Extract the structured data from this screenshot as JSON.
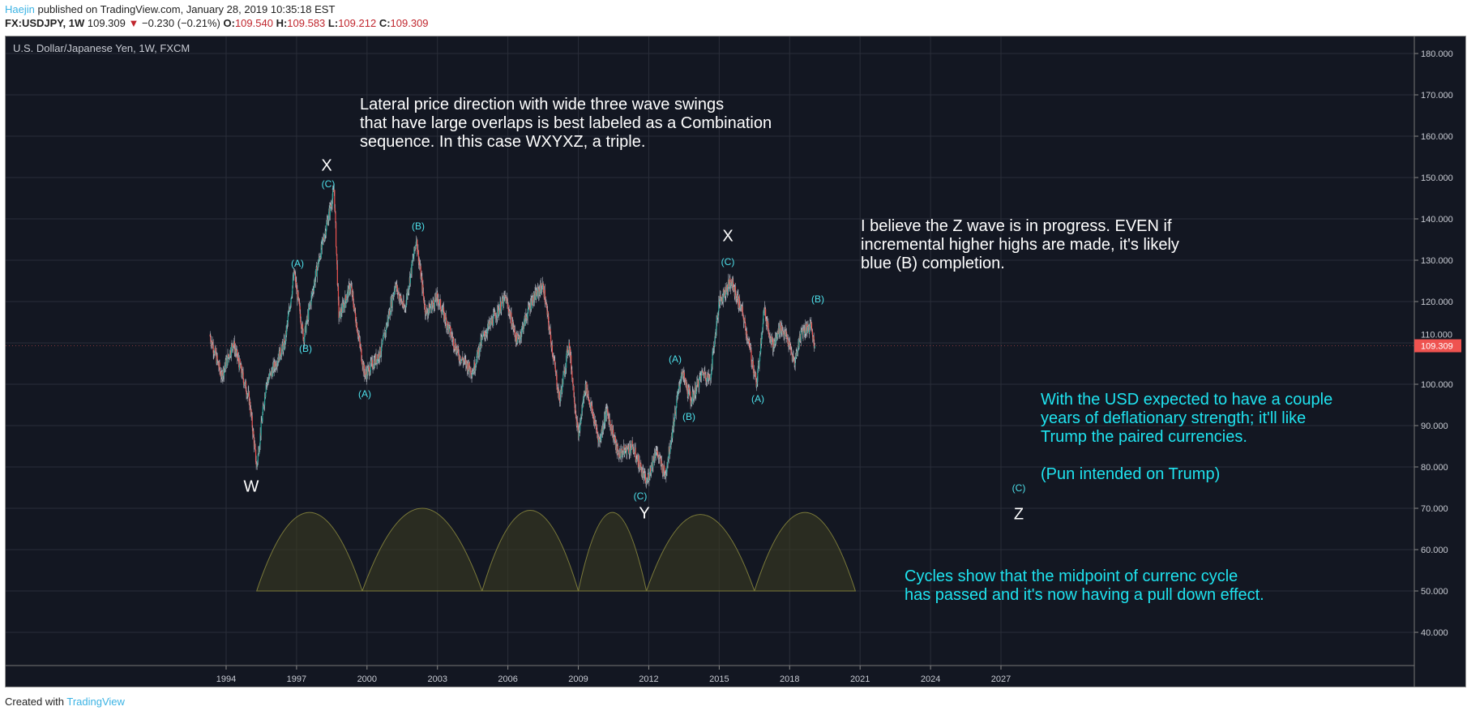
{
  "header": {
    "author": "Haejin",
    "published": "published on TradingView.com, January 28, 2019 10:35:18 EST",
    "symbol": "FX:USDJPY, 1W",
    "last": "109.309",
    "change": "−0.230 (−0.21%)",
    "o_label": "O:",
    "o": "109.540",
    "h_label": "H:",
    "h": "109.583",
    "l_label": "L:",
    "l": "109.212",
    "c_label": "C:",
    "c": "109.309"
  },
  "panel_title": "U.S. Dollar/Japanese Yen, 1W, FXCM",
  "annotations": {
    "lateral": "Lateral price direction with wide three wave swings\nthat have large overlaps is best labeled as a Combination\nsequence. In this case WXYXZ, a triple.",
    "believe": "I believe the Z wave is in progress. EVEN if\nincremental higher highs are made, it's likely\nblue (B) completion.",
    "usd": "With the USD expected to have a couple\nyears of deflationary strength; it'll like\nTrump the paired currencies.\n\n(Pun intended on Trump)",
    "cycles": "Cycles show that the midpoint of currenc cycle\nhas passed and it's now having a pull down effect."
  },
  "wave_labels": {
    "W": "W",
    "X1": "X",
    "X2": "X",
    "Y": "Y",
    "Z": "Z",
    "C1": "(C)",
    "A1": "(A)",
    "B1": "(B)",
    "B2": "(B)",
    "A2": "(A)",
    "C2": "(C)",
    "A3": "(A)",
    "B3": "(B)",
    "C3": "(C)",
    "A4": "(A)",
    "B4": "(B)",
    "C4": "(C)"
  },
  "footer": {
    "created": "Created with",
    "brand": "TradingView"
  },
  "chart_data": {
    "type": "candlestick",
    "title": "U.S. Dollar/Japanese Yen, 1W, FXCM",
    "x_ticks": [
      "1994",
      "1997",
      "2000",
      "2003",
      "2006",
      "2009",
      "2012",
      "2015",
      "2018",
      "2021",
      "2024",
      "2027"
    ],
    "y_ticks": [
      "180.000",
      "170.000",
      "160.000",
      "150.000",
      "140.000",
      "130.000",
      "120.000",
      "110.000",
      "100.000",
      "90.000",
      "80.000",
      "70.000",
      "60.000",
      "50.000",
      "40.000"
    ],
    "ylim": [
      33,
      183
    ],
    "xlim": [
      1981.2,
      2031.2
    ],
    "last_price_label": "109.309",
    "grid": true,
    "colors": {
      "up": "#26a69a",
      "down": "#ef5350",
      "wick": "#b2b5be",
      "last_price_bg": "#ef5350",
      "cycle_fill": "#3a3a22",
      "cycle_stroke": "#7b7a3a"
    },
    "price_pivots": [
      [
        1993.3,
        112
      ],
      [
        1993.8,
        102
      ],
      [
        1994.3,
        110
      ],
      [
        1995.0,
        96
      ],
      [
        1995.3,
        80
      ],
      [
        1995.7,
        100
      ],
      [
        1996.5,
        110
      ],
      [
        1996.9,
        127
      ],
      [
        1997.3,
        111
      ],
      [
        1997.8,
        126
      ],
      [
        1998.6,
        147
      ],
      [
        1998.8,
        116
      ],
      [
        1999.3,
        124
      ],
      [
        1999.9,
        102
      ],
      [
        2000.6,
        108
      ],
      [
        2001.2,
        124
      ],
      [
        2001.6,
        118
      ],
      [
        2002.1,
        135
      ],
      [
        2002.5,
        117
      ],
      [
        2003.0,
        121
      ],
      [
        2003.9,
        107
      ],
      [
        2004.5,
        103
      ],
      [
        2004.9,
        111
      ],
      [
        2005.9,
        121
      ],
      [
        2006.4,
        110
      ],
      [
        2007.0,
        120
      ],
      [
        2007.5,
        124
      ],
      [
        2008.2,
        96
      ],
      [
        2008.6,
        110
      ],
      [
        2009.0,
        87
      ],
      [
        2009.3,
        100
      ],
      [
        2009.9,
        86
      ],
      [
        2010.2,
        94
      ],
      [
        2010.7,
        83
      ],
      [
        2011.3,
        85
      ],
      [
        2011.9,
        76
      ],
      [
        2012.3,
        84
      ],
      [
        2012.7,
        78
      ],
      [
        2013.4,
        103
      ],
      [
        2013.8,
        96
      ],
      [
        2014.3,
        103
      ],
      [
        2014.6,
        101
      ],
      [
        2015.0,
        120
      ],
      [
        2015.5,
        125
      ],
      [
        2016.0,
        117
      ],
      [
        2016.6,
        100
      ],
      [
        2016.9,
        118
      ],
      [
        2017.3,
        109
      ],
      [
        2017.6,
        114
      ],
      [
        2017.9,
        111
      ],
      [
        2018.2,
        105
      ],
      [
        2018.5,
        113
      ],
      [
        2018.9,
        114
      ],
      [
        2019.07,
        109.309
      ]
    ],
    "cycles": [
      {
        "start": 1995.3,
        "end": 1999.8,
        "peak": 69
      },
      {
        "start": 1999.8,
        "end": 2004.9,
        "peak": 70
      },
      {
        "start": 2004.9,
        "end": 2009.0,
        "peak": 69.5
      },
      {
        "start": 2009.0,
        "end": 2011.9,
        "peak": 69
      },
      {
        "start": 2011.9,
        "end": 2016.5,
        "peak": 68.5
      },
      {
        "start": 2016.5,
        "end": 2020.8,
        "peak": 69
      }
    ],
    "cycle_base": 50
  }
}
